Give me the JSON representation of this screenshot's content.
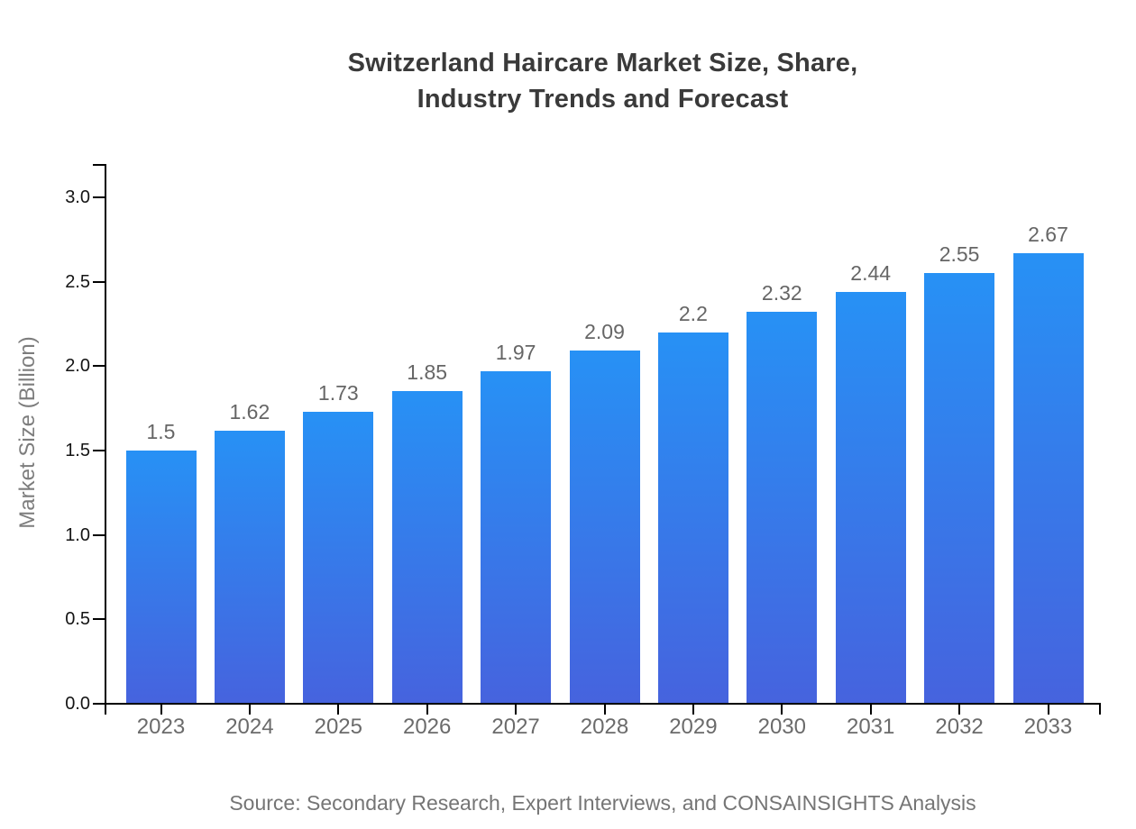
{
  "title": "Switzerland Haircare Market Size, Share,\nIndustry Trends and Forecast",
  "source": "Source: Secondary Research, Expert Interviews, and CONSAINSIGHTS Analysis",
  "y_axis_label": "Market Size (Billion)",
  "colors": {
    "title": "#3a3a3a",
    "axis": "#000000",
    "y_tick_label": "#141414",
    "x_tick_label": "#6b6b6b",
    "value_label": "#666666",
    "axis_label": "#7d7d7d",
    "source": "#757575",
    "bar_gradient_top": "#2791f5",
    "bar_gradient_bottom": "#4663de"
  },
  "chart_data": {
    "type": "bar",
    "title": "Switzerland Haircare Market Size, Share, Industry Trends and Forecast",
    "categories": [
      "2023",
      "2024",
      "2025",
      "2026",
      "2027",
      "2028",
      "2029",
      "2030",
      "2031",
      "2032",
      "2033"
    ],
    "values": [
      1.5,
      1.62,
      1.73,
      1.85,
      1.97,
      2.09,
      2.2,
      2.32,
      2.44,
      2.55,
      2.67
    ],
    "value_labels": [
      "1.5",
      "1.62",
      "1.73",
      "1.85",
      "1.97",
      "2.09",
      "2.2",
      "2.32",
      "2.44",
      "2.55",
      "2.67"
    ],
    "xlabel": "",
    "ylabel": "Market Size (Billion)",
    "ylim": [
      0,
      3.2
    ],
    "yticks": [
      0.0,
      0.5,
      1.0,
      1.5,
      2.0,
      2.5,
      3.0
    ],
    "ytick_labels": [
      "0.0",
      "0.5",
      "1.0",
      "1.5",
      "2.0",
      "2.5",
      "3.0"
    ],
    "grid": false,
    "legend": false,
    "bar_style": "vertical gradient, light blue top to royal blue bottom",
    "source_note": "Source: Secondary Research, Expert Interviews, and CONSAINSIGHTS Analysis"
  }
}
